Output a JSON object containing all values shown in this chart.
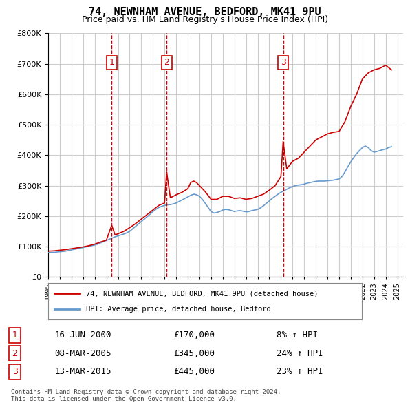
{
  "title": "74, NEWNHAM AVENUE, BEDFORD, MK41 9PU",
  "subtitle": "Price paid vs. HM Land Registry's House Price Index (HPI)",
  "ylabel_ticks": [
    "£0",
    "£100K",
    "£200K",
    "£300K",
    "£400K",
    "£500K",
    "£600K",
    "£700K",
    "£800K"
  ],
  "ylim": [
    0,
    800000
  ],
  "xlim_start": 1995.0,
  "xlim_end": 2025.5,
  "background_color": "#ffffff",
  "grid_color": "#cccccc",
  "purchase_dates": [
    2000.46,
    2005.18,
    2015.19
  ],
  "purchase_prices": [
    170000,
    345000,
    445000
  ],
  "purchase_labels": [
    "1",
    "2",
    "3"
  ],
  "purchase_info": [
    {
      "label": "1",
      "date": "16-JUN-2000",
      "price": "£170,000",
      "hpi": "8% ↑ HPI"
    },
    {
      "label": "2",
      "date": "08-MAR-2005",
      "price": "£345,000",
      "hpi": "24% ↑ HPI"
    },
    {
      "label": "3",
      "date": "13-MAR-2015",
      "price": "£445,000",
      "hpi": "23% ↑ HPI"
    }
  ],
  "legend_line1": "74, NEWNHAM AVENUE, BEDFORD, MK41 9PU (detached house)",
  "legend_line2": "HPI: Average price, detached house, Bedford",
  "footer": "Contains HM Land Registry data © Crown copyright and database right 2024.\nThis data is licensed under the Open Government Licence v3.0.",
  "hpi_data": {
    "years": [
      1995.0,
      1995.25,
      1995.5,
      1995.75,
      1996.0,
      1996.25,
      1996.5,
      1996.75,
      1997.0,
      1997.25,
      1997.5,
      1997.75,
      1998.0,
      1998.25,
      1998.5,
      1998.75,
      1999.0,
      1999.25,
      1999.5,
      1999.75,
      2000.0,
      2000.25,
      2000.5,
      2000.75,
      2001.0,
      2001.25,
      2001.5,
      2001.75,
      2002.0,
      2002.25,
      2002.5,
      2002.75,
      2003.0,
      2003.25,
      2003.5,
      2003.75,
      2004.0,
      2004.25,
      2004.5,
      2004.75,
      2005.0,
      2005.25,
      2005.5,
      2005.75,
      2006.0,
      2006.25,
      2006.5,
      2006.75,
      2007.0,
      2007.25,
      2007.5,
      2007.75,
      2008.0,
      2008.25,
      2008.5,
      2008.75,
      2009.0,
      2009.25,
      2009.5,
      2009.75,
      2010.0,
      2010.25,
      2010.5,
      2010.75,
      2011.0,
      2011.25,
      2011.5,
      2011.75,
      2012.0,
      2012.25,
      2012.5,
      2012.75,
      2013.0,
      2013.25,
      2013.5,
      2013.75,
      2014.0,
      2014.25,
      2014.5,
      2014.75,
      2015.0,
      2015.25,
      2015.5,
      2015.75,
      2016.0,
      2016.25,
      2016.5,
      2016.75,
      2017.0,
      2017.25,
      2017.5,
      2017.75,
      2018.0,
      2018.25,
      2018.5,
      2018.75,
      2019.0,
      2019.25,
      2019.5,
      2019.75,
      2020.0,
      2020.25,
      2020.5,
      2020.75,
      2021.0,
      2021.25,
      2021.5,
      2021.75,
      2022.0,
      2022.25,
      2022.5,
      2022.75,
      2023.0,
      2023.25,
      2023.5,
      2023.75,
      2024.0,
      2024.25,
      2024.5
    ],
    "values": [
      80000,
      80500,
      81000,
      82000,
      83000,
      84000,
      85000,
      87000,
      89000,
      91000,
      93000,
      95000,
      97000,
      99000,
      101000,
      103000,
      105000,
      108000,
      112000,
      116000,
      120000,
      124000,
      128000,
      132000,
      135000,
      138000,
      141000,
      145000,
      150000,
      158000,
      166000,
      174000,
      182000,
      190000,
      198000,
      206000,
      215000,
      222000,
      228000,
      232000,
      235000,
      237000,
      238000,
      240000,
      243000,
      248000,
      253000,
      258000,
      263000,
      268000,
      272000,
      270000,
      265000,
      255000,
      242000,
      228000,
      215000,
      210000,
      212000,
      215000,
      220000,
      222000,
      221000,
      218000,
      215000,
      217000,
      218000,
      216000,
      214000,
      215000,
      218000,
      220000,
      222000,
      227000,
      234000,
      242000,
      250000,
      258000,
      265000,
      272000,
      278000,
      283000,
      288000,
      293000,
      297000,
      300000,
      302000,
      303000,
      305000,
      308000,
      310000,
      312000,
      314000,
      315000,
      315000,
      315000,
      316000,
      317000,
      318000,
      320000,
      322000,
      330000,
      345000,
      362000,
      378000,
      392000,
      405000,
      415000,
      425000,
      430000,
      425000,
      415000,
      410000,
      412000,
      415000,
      418000,
      420000,
      425000,
      428000
    ]
  },
  "price_data": {
    "years": [
      1995.0,
      1995.5,
      1996.0,
      1996.5,
      1997.0,
      1997.5,
      1998.0,
      1998.5,
      1999.0,
      1999.5,
      2000.0,
      2000.46,
      2000.75,
      2001.0,
      2001.5,
      2002.0,
      2002.5,
      2003.0,
      2003.5,
      2004.0,
      2004.5,
      2005.0,
      2005.18,
      2005.5,
      2006.0,
      2006.5,
      2007.0,
      2007.25,
      2007.5,
      2007.75,
      2008.0,
      2008.5,
      2009.0,
      2009.5,
      2010.0,
      2010.5,
      2011.0,
      2011.5,
      2012.0,
      2012.5,
      2013.0,
      2013.5,
      2014.0,
      2014.5,
      2015.0,
      2015.19,
      2015.5,
      2016.0,
      2016.5,
      2017.0,
      2017.5,
      2018.0,
      2018.5,
      2019.0,
      2019.5,
      2020.0,
      2020.5,
      2021.0,
      2021.5,
      2022.0,
      2022.5,
      2023.0,
      2023.5,
      2024.0,
      2024.5
    ],
    "values": [
      85000,
      86000,
      88000,
      90000,
      93000,
      96000,
      99000,
      103000,
      108000,
      115000,
      121000,
      170000,
      138000,
      142000,
      150000,
      162000,
      175000,
      190000,
      205000,
      220000,
      235000,
      243000,
      345000,
      260000,
      270000,
      278000,
      290000,
      310000,
      315000,
      310000,
      300000,
      280000,
      255000,
      255000,
      265000,
      265000,
      258000,
      260000,
      255000,
      258000,
      265000,
      272000,
      285000,
      300000,
      330000,
      445000,
      355000,
      380000,
      390000,
      410000,
      430000,
      450000,
      460000,
      470000,
      475000,
      478000,
      510000,
      560000,
      600000,
      650000,
      670000,
      680000,
      685000,
      695000,
      680000
    ]
  }
}
